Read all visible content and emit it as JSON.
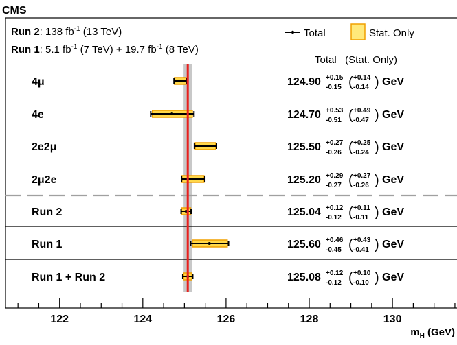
{
  "chart_data": {
    "type": "forest",
    "experiment": "CMS",
    "lumi": {
      "run2_label": "Run 2",
      "run2_text": ": 138 fb",
      "run2_sup": "-1",
      "run2_energy": " (13 TeV)",
      "run1_label": "Run 1",
      "run1_text_a": ": 5.1 fb",
      "run1_sup_a": "-1",
      "run1_text_b": " (7 TeV) + 19.7 fb",
      "run1_sup_b": "-1",
      "run1_text_c": " (8 TeV)"
    },
    "legend": {
      "total": "Total",
      "stat": "Stat. Only",
      "column_header": "Total   (Stat. Only)"
    },
    "xlabel": "m",
    "xlabel_sub": "H",
    "xlabel_unit": " (GeV)",
    "xlim": [
      120.7,
      131.6
    ],
    "ticks": [
      122,
      124,
      126,
      128,
      130
    ],
    "tick_labels": [
      "122",
      "124",
      "126",
      "128",
      "130"
    ],
    "combined_band": {
      "value": 125.08,
      "low": 124.98,
      "high": 125.18
    },
    "reference_line": 125.08,
    "rows": [
      {
        "label": "4μ",
        "value": 124.9,
        "total_up": 0.15,
        "total_down": 0.15,
        "stat_up": 0.14,
        "stat_down": 0.14,
        "value_text": "124.90",
        "t_up": "+0.15",
        "t_dn": "-0.15",
        "s_up": "+0.14",
        "s_dn": "-0.14",
        "unit": "GeV"
      },
      {
        "label": "4e",
        "value": 124.7,
        "total_up": 0.53,
        "total_down": 0.51,
        "stat_up": 0.49,
        "stat_down": 0.47,
        "value_text": "124.70",
        "t_up": "+0.53",
        "t_dn": "-0.51",
        "s_up": "+0.49",
        "s_dn": "-0.47",
        "unit": "GeV"
      },
      {
        "label": "2e2μ",
        "value": 125.5,
        "total_up": 0.27,
        "total_down": 0.26,
        "stat_up": 0.25,
        "stat_down": 0.24,
        "value_text": "125.50",
        "t_up": "+0.27",
        "t_dn": "-0.26",
        "s_up": "+0.25",
        "s_dn": "-0.24",
        "unit": "GeV"
      },
      {
        "label": "2μ2e",
        "value": 125.2,
        "total_up": 0.29,
        "total_down": 0.27,
        "stat_up": 0.27,
        "stat_down": 0.26,
        "value_text": "125.20",
        "t_up": "+0.29",
        "t_dn": "-0.27",
        "s_up": "+0.27",
        "s_dn": "-0.26",
        "unit": "GeV"
      },
      {
        "label": "Run 2",
        "value": 125.04,
        "total_up": 0.12,
        "total_down": 0.12,
        "stat_up": 0.11,
        "stat_down": 0.11,
        "value_text": "125.04",
        "t_up": "+0.12",
        "t_dn": "-0.12",
        "s_up": "+0.11",
        "s_dn": "-0.11",
        "unit": "GeV"
      },
      {
        "label": "Run 1",
        "value": 125.6,
        "total_up": 0.46,
        "total_down": 0.45,
        "stat_up": 0.43,
        "stat_down": 0.41,
        "value_text": "125.60",
        "t_up": "+0.46",
        "t_dn": "-0.45",
        "s_up": "+0.43",
        "s_dn": "-0.41",
        "unit": "GeV"
      },
      {
        "label": "Run 1 + Run 2",
        "value": 125.08,
        "total_up": 0.12,
        "total_down": 0.12,
        "stat_up": 0.1,
        "stat_down": 0.1,
        "value_text": "125.08",
        "t_up": "+0.12",
        "t_dn": "-0.12",
        "s_up": "+0.10",
        "s_dn": "-0.10",
        "unit": "GeV"
      }
    ],
    "colors": {
      "stat_fill": "#ffd84a",
      "stat_border": "#f0a000",
      "reference_line": "#e8201e",
      "band": "#c8c8c8",
      "dashed_separator": "#a0a0a0"
    }
  }
}
